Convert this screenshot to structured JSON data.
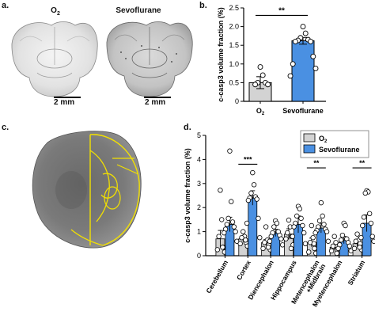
{
  "panels": {
    "a": {
      "letter": "a.",
      "left_title": "O",
      "left_title_sub": "2",
      "right_title": "Sevoflurane",
      "scale_label_left": "2 mm",
      "scale_label_right": "2 mm"
    },
    "b": {
      "letter": "b."
    },
    "c": {
      "letter": "c."
    },
    "d": {
      "letter": "d."
    }
  },
  "chart_data": [
    {
      "id": "b",
      "type": "bar",
      "ylabel": "c-casp3 volume fraction (%)",
      "ylim": [
        0,
        2.5
      ],
      "yticks": [
        "0",
        "0.5",
        "1.0",
        "1.5",
        "2.0",
        "2.5"
      ],
      "categories": [
        {
          "label": "O",
          "sub": "2"
        },
        {
          "label": "Sevoflurane",
          "sub": ""
        }
      ],
      "series": [
        {
          "values": [
            0.5,
            1.62
          ],
          "errors": [
            0.16,
            0.09
          ],
          "colors": [
            "#d3d3d3",
            "#4a90e2"
          ],
          "points": [
            [
              0.92,
              0.7,
              0.5,
              0.5,
              0.45,
              0.45
            ],
            [
              2.0,
              1.82,
              1.7,
              1.65,
              1.63,
              1.6,
              1.6,
              1.2,
              1.0,
              0.88,
              0.68
            ]
          ]
        }
      ],
      "significance": [
        {
          "from": 0,
          "to": 1,
          "label": "**"
        }
      ]
    },
    {
      "id": "d",
      "type": "bar",
      "ylabel": "c-casp3 volume fraction (%)",
      "ylim": [
        0,
        5
      ],
      "yticks": [
        "0",
        "1",
        "2",
        "3",
        "4",
        "5"
      ],
      "categories": [
        "Cerebellum",
        "Cortex",
        "Diencephalon",
        "Hippocampus",
        "Metencephalon\n+Midbrain",
        "Myelencephalon",
        "Striatum"
      ],
      "legend": {
        "position": "top-right",
        "entries": [
          {
            "label": "O",
            "sub": "2",
            "color": "#d3d3d3"
          },
          {
            "label": "Sevoflurane",
            "sub": "",
            "color": "#4a90e2"
          }
        ]
      },
      "series": [
        {
          "name": "O2",
          "color": "#d3d3d3",
          "values": [
            0.7,
            0.7,
            0.55,
            0.9,
            0.55,
            0.35,
            0.5
          ],
          "errors": [
            0.35,
            0.12,
            0.12,
            0.22,
            0.18,
            0.1,
            0.13
          ],
          "points": [
            [
              2.72,
              1.5,
              0.8,
              0.35,
              0.25,
              0.15
            ],
            [
              1.0,
              0.8,
              0.75,
              0.55,
              0.5,
              0.4
            ],
            [
              1.2,
              0.65,
              0.55,
              0.45,
              0.3,
              0.25
            ],
            [
              1.48,
              1.2,
              0.95,
              0.8,
              0.7,
              0.45
            ],
            [
              1.25,
              0.75,
              0.55,
              0.3,
              0.15,
              0.1
            ],
            [
              0.8,
              0.55,
              0.4,
              0.25,
              0.2,
              0.1
            ],
            [
              0.9,
              0.65,
              0.6,
              0.5,
              0.3,
              0.25
            ]
          ]
        },
        {
          "name": "Sevoflurane",
          "color": "#4a90e2",
          "values": [
            1.3,
            2.4,
            0.95,
            1.3,
            1.15,
            0.65,
            1.35
          ],
          "errors": [
            0.3,
            0.3,
            0.15,
            0.35,
            0.2,
            0.15,
            0.35
          ],
          "points": [
            [
              4.35,
              2.25,
              1.55,
              1.4,
              1.3,
              1.2,
              1.1,
              1.0,
              0.95,
              0.6,
              0.35
            ],
            [
              3.45,
              2.95,
              2.6,
              2.45,
              2.4,
              2.35,
              2.3,
              1.55,
              1.35,
              0.75,
              0.65
            ],
            [
              1.45,
              1.35,
              1.2,
              1.0,
              0.95,
              0.85,
              0.8,
              0.7,
              0.6,
              0.45,
              0.35
            ],
            [
              2.05,
              1.95,
              1.65,
              1.55,
              1.35,
              1.25,
              1.2,
              0.95,
              0.8,
              0.5,
              0.3
            ],
            [
              2.2,
              1.65,
              1.45,
              1.3,
              1.2,
              1.1,
              1.05,
              1.0,
              0.95,
              0.6,
              0.5
            ],
            [
              1.35,
              1.25,
              0.85,
              0.7,
              0.65,
              0.55,
              0.45,
              0.4,
              0.3,
              0.2,
              0.1
            ],
            [
              2.7,
              2.65,
              2.6,
              1.75,
              1.6,
              1.35,
              1.25,
              0.8,
              0.75,
              0.6,
              0.35
            ]
          ]
        }
      ],
      "significance": [
        {
          "category": 1,
          "label": "***"
        },
        {
          "category": 4,
          "label": "**"
        },
        {
          "category": 6,
          "label": "**"
        }
      ]
    }
  ]
}
